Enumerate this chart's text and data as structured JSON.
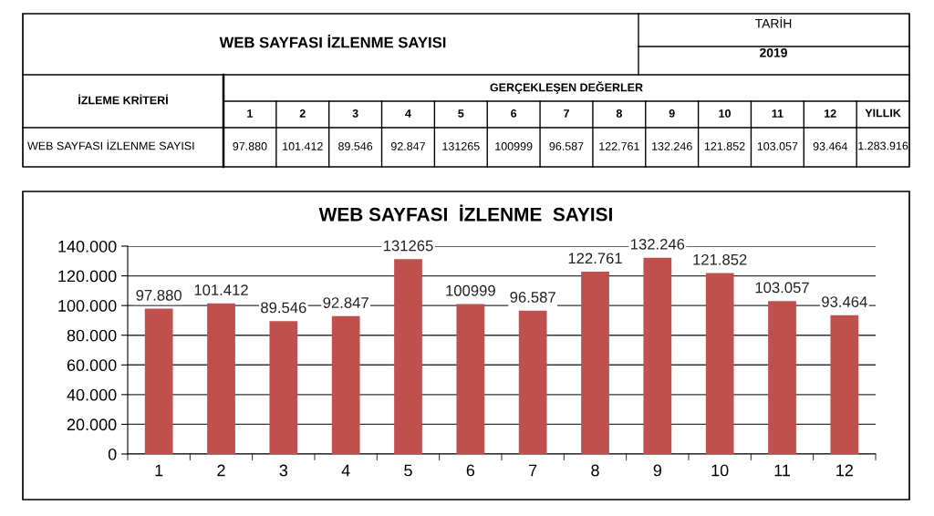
{
  "chart_data": {
    "type": "bar",
    "title": "WEB SAYFASI  İZLENME  SAYISI",
    "categories": [
      "1",
      "2",
      "3",
      "4",
      "5",
      "6",
      "7",
      "8",
      "9",
      "10",
      "11",
      "12"
    ],
    "values": [
      97880,
      101412,
      89546,
      92847,
      131265,
      100999,
      96587,
      122761,
      132246,
      121852,
      103057,
      93464
    ],
    "value_labels": [
      "97.880",
      "101.412",
      "89.546",
      "92.847",
      "131265",
      "100999",
      "96.587",
      "122.761",
      "132.246",
      "121.852",
      "103.057",
      "93.464"
    ],
    "color": "#c0504d",
    "ylim": [
      0,
      140000
    ],
    "yticks": [
      0,
      {
        "value": 20000,
        "label": "20.000"
      },
      {
        "value": 40000,
        "label": "40.000"
      },
      {
        "value": 60000,
        "label": "60.000"
      },
      {
        "value": 80000,
        "label": "80.000"
      },
      {
        "value": 100000,
        "label": "100.000"
      },
      {
        "value": 120000,
        "label": "120.000"
      },
      {
        "value": 140000,
        "label": "140.000"
      }
    ],
    "grid": "y",
    "annotations": [
      "WEB SAYFASI İZLENME SAYISI",
      "TARİH",
      "2019",
      "İZLEME KRİTERİ",
      "GERÇEKLEŞEN DEĞERLER",
      "WEB SAYFASI İZLENME SAYISI",
      "YILLIK",
      "1.283.916"
    ]
  }
}
